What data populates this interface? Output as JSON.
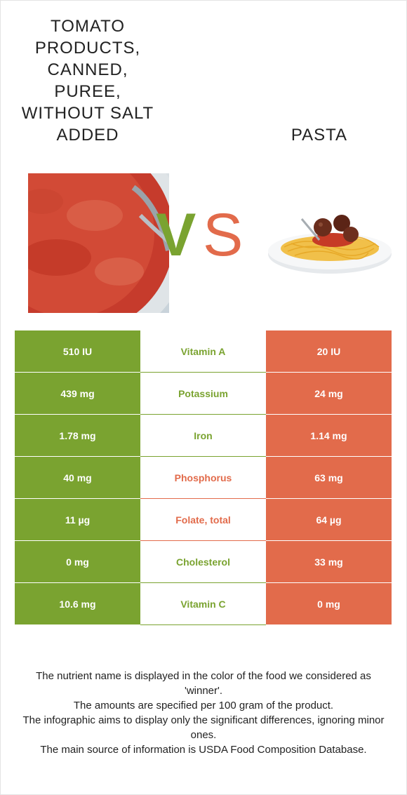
{
  "colors": {
    "tomato": "#7aa330",
    "pasta": "#e26b4b",
    "tomato_bg": "#7aa330",
    "pasta_bg": "#e26b4b"
  },
  "left_food": {
    "title": "TOMATO PRODUCTS, CANNED, PUREE, WITHOUT SALT ADDED",
    "image": "tomato-puree-bowl-image"
  },
  "right_food": {
    "title": "PASTA",
    "image": "spaghetti-meatballs-plate-image"
  },
  "vs": {
    "v": "V",
    "s": "S"
  },
  "rows": [
    {
      "left": "510 IU",
      "nutrient": "Vitamin A",
      "right": "20 IU",
      "winner": "tomato"
    },
    {
      "left": "439 mg",
      "nutrient": "Potassium",
      "right": "24 mg",
      "winner": "tomato"
    },
    {
      "left": "1.78 mg",
      "nutrient": "Iron",
      "right": "1.14 mg",
      "winner": "tomato"
    },
    {
      "left": "40 mg",
      "nutrient": "Phosphorus",
      "right": "63 mg",
      "winner": "pasta"
    },
    {
      "left": "11 µg",
      "nutrient": "Folate, total",
      "right": "64 µg",
      "winner": "pasta"
    },
    {
      "left": "0 mg",
      "nutrient": "Cholesterol",
      "right": "33 mg",
      "winner": "tomato"
    },
    {
      "left": "10.6 mg",
      "nutrient": "Vitamin C",
      "right": "0 mg",
      "winner": "tomato"
    }
  ],
  "footnotes": [
    "The nutrient name is displayed in the color of the food we considered as 'winner'.",
    "The amounts are specified per 100 gram of the product.",
    "The infographic aims to display only the significant differences, ignoring minor ones.",
    "The main source of information is USDA Food Composition Database."
  ]
}
